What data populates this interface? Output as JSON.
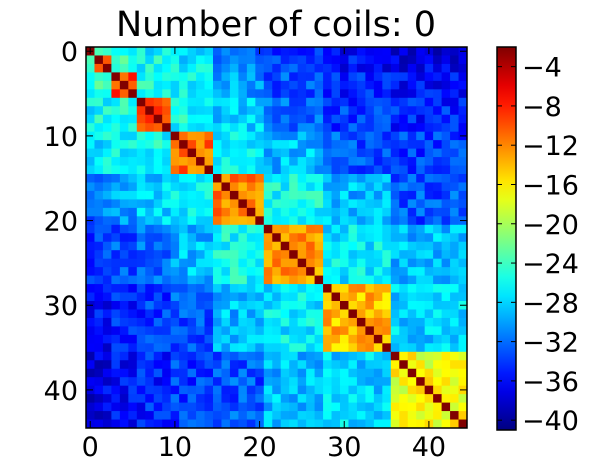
{
  "chart_data": {
    "type": "heatmap",
    "title": "Number of coils: 0",
    "size": 45,
    "x_ticks": [
      0,
      10,
      20,
      30,
      40
    ],
    "y_ticks": [
      0,
      10,
      20,
      30,
      40
    ],
    "x_tick_labels": [
      "0",
      "10",
      "20",
      "30",
      "40"
    ],
    "y_tick_labels": [
      "0",
      "10",
      "20",
      "30",
      "40"
    ],
    "xlim": [
      -0.5,
      44.5
    ],
    "ylim": [
      44.5,
      -0.5
    ],
    "colorbar": {
      "min": -41,
      "max": -2,
      "ticks": [
        -4,
        -8,
        -12,
        -16,
        -20,
        -24,
        -28,
        -32,
        -36,
        -40
      ],
      "tick_labels": [
        "−4",
        "−8",
        "−12",
        "−16",
        "−20",
        "−24",
        "−28",
        "−32",
        "−36",
        "−40"
      ],
      "colormap": "jet"
    },
    "diagonal_value": -2,
    "blocks": [
      {
        "start": 0,
        "end": 1,
        "value": -6
      },
      {
        "start": 1,
        "end": 3,
        "value": -8
      },
      {
        "start": 3,
        "end": 6,
        "value": -9
      },
      {
        "start": 6,
        "end": 10,
        "value": -10
      },
      {
        "start": 10,
        "end": 15,
        "value": -11
      },
      {
        "start": 15,
        "end": 21,
        "value": -12
      },
      {
        "start": 21,
        "end": 28,
        "value": -13
      },
      {
        "start": 28,
        "end": 36,
        "value": -14
      },
      {
        "start": 36,
        "end": 45,
        "value": -17
      }
    ],
    "block_pair_values": [
      [
        -6,
        -22,
        -25,
        -27,
        -28,
        -33,
        -35,
        -37,
        -38
      ],
      [
        -22,
        -8,
        -24,
        -26,
        -27,
        -31,
        -34,
        -36,
        -37
      ],
      [
        -25,
        -24,
        -9,
        -25,
        -27,
        -30,
        -33,
        -35,
        -36
      ],
      [
        -27,
        -26,
        -25,
        -10,
        -26,
        -28,
        -32,
        -34,
        -35
      ],
      [
        -28,
        -27,
        -27,
        -26,
        -11,
        -27,
        -29,
        -33,
        -34
      ],
      [
        -33,
        -31,
        -30,
        -28,
        -27,
        -12,
        -26,
        -29,
        -33
      ],
      [
        -35,
        -34,
        -33,
        -32,
        -29,
        -26,
        -13,
        -27,
        -29
      ],
      [
        -37,
        -36,
        -35,
        -34,
        -33,
        -29,
        -27,
        -14,
        -28
      ],
      [
        -38,
        -37,
        -36,
        -35,
        -34,
        -33,
        -29,
        -28,
        -17
      ]
    ],
    "noise_amplitude": 5
  }
}
